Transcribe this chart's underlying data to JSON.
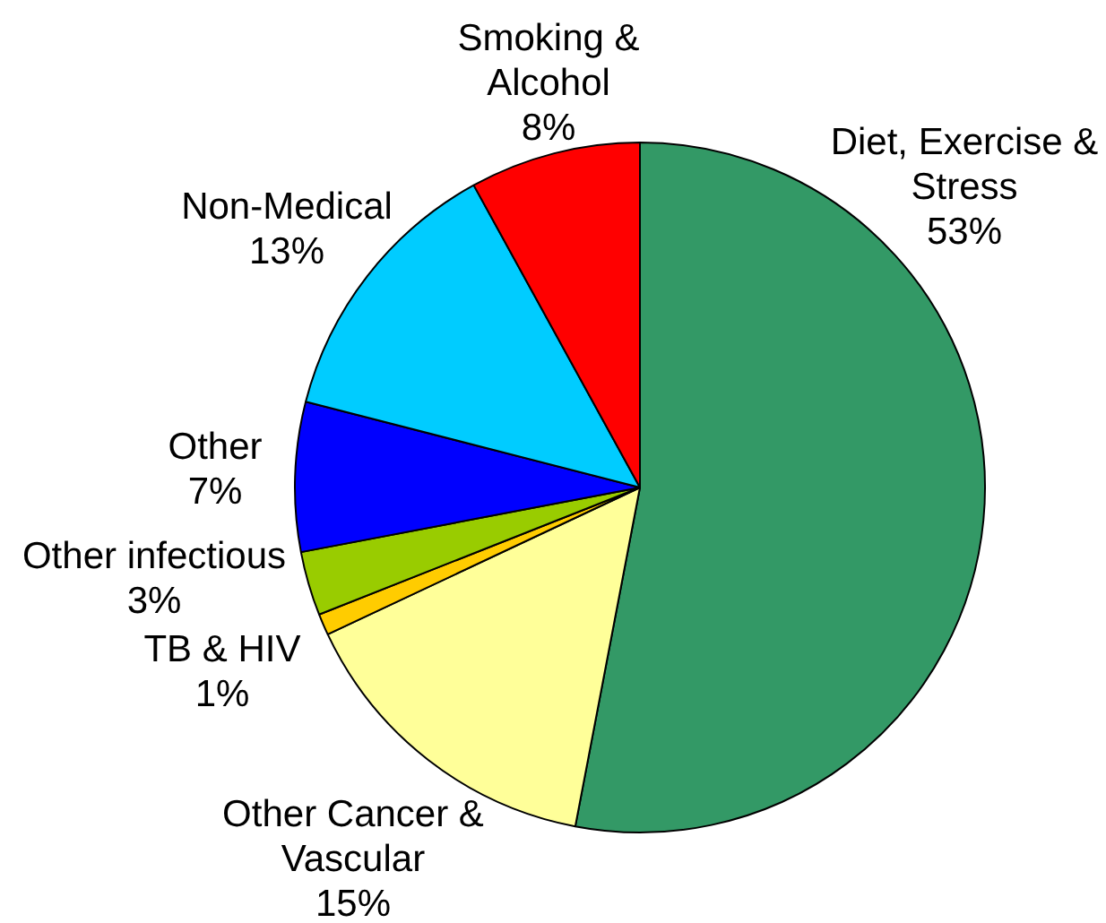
{
  "chart_data": {
    "type": "pie",
    "categories": [
      "Diet, Exercise & Stress",
      "Other Cancer & Vascular",
      "TB & HIV",
      "Other infectious",
      "Other",
      "Non-Medical",
      "Smoking & Alcohol"
    ],
    "values": [
      53,
      15,
      1,
      3,
      7,
      13,
      8
    ],
    "colors": [
      "#339966",
      "#ffff99",
      "#ffcc00",
      "#99cc00",
      "#0000ff",
      "#00ccff",
      "#ff0000"
    ],
    "value_labels": [
      "53%",
      "15%",
      "1%",
      "3%",
      "7%",
      "13%",
      "8%"
    ]
  }
}
